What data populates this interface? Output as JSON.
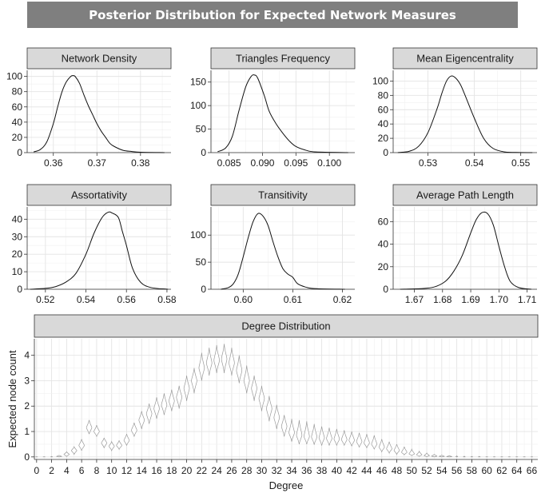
{
  "title": "Posterior Distribution for Expected Network Measures",
  "chart_data": [
    {
      "type": "line",
      "title": "Network  Density",
      "xlim": [
        0.354,
        0.387
      ],
      "ylim": [
        0,
        108
      ],
      "xticks": [
        0.36,
        0.37,
        0.38
      ],
      "xtick_labels": [
        "0.36",
        "0.37",
        "0.38"
      ],
      "yticks": [
        0,
        20,
        40,
        60,
        80,
        100
      ],
      "ytick_labels": [
        "0",
        "20",
        "40",
        "60",
        "80",
        "100"
      ],
      "minor_x": [
        0.355,
        0.365,
        0.375,
        0.385
      ],
      "minor_y": [
        10,
        30,
        50,
        70,
        90
      ],
      "x": [
        0.3555,
        0.357,
        0.3585,
        0.36,
        0.361,
        0.362,
        0.363,
        0.364,
        0.3645,
        0.365,
        0.366,
        0.367,
        0.368,
        0.369,
        0.37,
        0.371,
        0.372,
        0.373,
        0.374,
        0.376,
        0.378,
        0.38,
        0.3855
      ],
      "y": [
        1,
        4,
        14,
        38,
        60,
        80,
        93,
        100,
        101,
        100,
        91,
        76,
        62,
        50,
        38,
        28,
        20,
        12,
        8,
        3,
        1.5,
        0.5,
        0
      ]
    },
    {
      "type": "line",
      "title": "Triangles Frequency",
      "xlim": [
        0.0823,
        0.1038
      ],
      "ylim": [
        0,
        175
      ],
      "xticks": [
        0.085,
        0.09,
        0.095,
        0.1
      ],
      "xtick_labels": [
        "0.085",
        "0.090",
        "0.095",
        "0.100"
      ],
      "yticks": [
        0,
        50,
        100,
        150
      ],
      "ytick_labels": [
        "0",
        "50",
        "100",
        "150"
      ],
      "minor_x": [
        0.0825,
        0.0875,
        0.0925,
        0.0975,
        0.1025
      ],
      "minor_y": [
        25,
        75,
        125
      ],
      "x": [
        0.0833,
        0.0845,
        0.0855,
        0.0865,
        0.0875,
        0.0883,
        0.0888,
        0.0893,
        0.0903,
        0.091,
        0.092,
        0.093,
        0.094,
        0.095,
        0.0965,
        0.098,
        0.1028
      ],
      "y": [
        2,
        10,
        35,
        90,
        140,
        162,
        165,
        158,
        120,
        88,
        62,
        42,
        25,
        13,
        5,
        1.5,
        0
      ]
    },
    {
      "type": "line",
      "title": "Mean Eigencentrality",
      "xlim": [
        0.5225,
        0.5535
      ],
      "ylim": [
        0,
        115
      ],
      "xticks": [
        0.53,
        0.54,
        0.55
      ],
      "xtick_labels": [
        "0.53",
        "0.54",
        "0.55"
      ],
      "yticks": [
        0,
        20,
        40,
        60,
        80,
        100
      ],
      "ytick_labels": [
        "0",
        "20",
        "40",
        "60",
        "80",
        "100"
      ],
      "minor_x": [
        0.525,
        0.535,
        0.545
      ],
      "minor_y": [
        10,
        30,
        50,
        70,
        90
      ],
      "x": [
        0.5235,
        0.526,
        0.528,
        0.53,
        0.532,
        0.533,
        0.534,
        0.535,
        0.536,
        0.537,
        0.538,
        0.54,
        0.542,
        0.544,
        0.5465,
        0.549,
        0.5525
      ],
      "y": [
        0,
        2,
        9,
        28,
        62,
        83,
        100,
        107,
        104,
        95,
        80,
        48,
        20,
        6,
        1,
        0.3,
        0
      ]
    },
    {
      "type": "line",
      "title": "Assortativity",
      "xlim": [
        0.511,
        0.582
      ],
      "ylim": [
        0,
        47
      ],
      "xticks": [
        0.52,
        0.54,
        0.56,
        0.58
      ],
      "xtick_labels": [
        "0.52",
        "0.54",
        "0.56",
        "0.58"
      ],
      "yticks": [
        0,
        10,
        20,
        30,
        40
      ],
      "ytick_labels": [
        "0",
        "10",
        "20",
        "30",
        "40"
      ],
      "minor_x": [
        0.51,
        0.53,
        0.55,
        0.57
      ],
      "minor_y": [
        5,
        15,
        25,
        35,
        45
      ],
      "x": [
        0.5125,
        0.52,
        0.525,
        0.53,
        0.535,
        0.54,
        0.544,
        0.548,
        0.551,
        0.553,
        0.556,
        0.558,
        0.56,
        0.563,
        0.567,
        0.572,
        0.5805
      ],
      "y": [
        0,
        0.5,
        1.5,
        4,
        9,
        20,
        32,
        41,
        44,
        43.5,
        41,
        33,
        25,
        12,
        4,
        1,
        0
      ]
    },
    {
      "type": "line",
      "title": "Transitivity",
      "xlim": [
        0.5935,
        0.6225
      ],
      "ylim": [
        0,
        152
      ],
      "xticks": [
        0.6,
        0.61,
        0.62
      ],
      "xtick_labels": [
        "0.60",
        "0.61",
        "0.62"
      ],
      "yticks": [
        0,
        50,
        100
      ],
      "ytick_labels": [
        "0",
        "50",
        "100"
      ],
      "minor_x": [
        0.595,
        0.605,
        0.615
      ],
      "minor_y": [
        25,
        75,
        125
      ],
      "x": [
        0.5955,
        0.597,
        0.598,
        0.599,
        0.6,
        0.601,
        0.602,
        0.603,
        0.604,
        0.605,
        0.606,
        0.607,
        0.608,
        0.609,
        0.61,
        0.611,
        0.613,
        0.615,
        0.6205
      ],
      "y": [
        0,
        3,
        10,
        28,
        60,
        95,
        125,
        140,
        135,
        118,
        88,
        60,
        38,
        28,
        22,
        10,
        3,
        1,
        0
      ]
    },
    {
      "type": "line",
      "title": "Average Path Length",
      "xlim": [
        1.6625,
        1.7135
      ],
      "ylim": [
        0,
        73
      ],
      "xticks": [
        1.67,
        1.68,
        1.69,
        1.7,
        1.71
      ],
      "xtick_labels": [
        "1.67",
        "1.68",
        "1.69",
        "1.70",
        "1.71"
      ],
      "yticks": [
        0,
        20,
        40,
        60
      ],
      "ytick_labels": [
        "0",
        "20",
        "40",
        "60"
      ],
      "minor_x": [
        1.665,
        1.675,
        1.685,
        1.695,
        1.705
      ],
      "minor_y": [
        10,
        30,
        50,
        70
      ],
      "x": [
        1.665,
        1.672,
        1.677,
        1.681,
        1.684,
        1.687,
        1.69,
        1.692,
        1.694,
        1.696,
        1.698,
        1.7,
        1.702,
        1.704,
        1.707,
        1.7115
      ],
      "y": [
        0,
        0.5,
        2,
        7,
        16,
        30,
        50,
        62,
        68,
        67,
        57,
        38,
        20,
        7,
        1.5,
        0
      ]
    },
    {
      "type": "violin",
      "title": "Degree Distribution",
      "xlabel": "Degree",
      "ylabel": "Expected node count",
      "xlim": [
        -0.3,
        66.8
      ],
      "ylim": [
        -0.1,
        4.65
      ],
      "xticks": [
        0,
        2,
        4,
        6,
        8,
        10,
        12,
        14,
        16,
        18,
        20,
        22,
        24,
        26,
        28,
        30,
        32,
        34,
        36,
        38,
        40,
        42,
        44,
        46,
        48,
        50,
        52,
        54,
        56,
        58,
        60,
        62,
        64,
        66
      ],
      "xtick_labels": [
        "0",
        "2",
        "4",
        "6",
        "8",
        "10",
        "12",
        "14",
        "16",
        "18",
        "20",
        "22",
        "24",
        "26",
        "28",
        "30",
        "32",
        "34",
        "36",
        "38",
        "40",
        "42",
        "44",
        "46",
        "48",
        "50",
        "52",
        "54",
        "56",
        "58",
        "60",
        "62",
        "64",
        "66"
      ],
      "yticks": [
        0,
        1,
        2,
        3,
        4
      ],
      "ytick_labels": [
        "0",
        "1",
        "2",
        "3",
        "4"
      ],
      "minor_y": [
        0.5,
        1.5,
        2.5,
        3.5
      ],
      "degree": [
        0,
        1,
        2,
        3,
        4,
        5,
        6,
        7,
        8,
        9,
        10,
        11,
        12,
        13,
        14,
        15,
        16,
        17,
        18,
        19,
        20,
        21,
        22,
        23,
        24,
        25,
        26,
        27,
        28,
        29,
        30,
        31,
        32,
        33,
        34,
        35,
        36,
        37,
        38,
        39,
        40,
        41,
        42,
        43,
        44,
        45,
        46,
        47,
        48,
        49,
        50,
        51,
        52,
        53,
        54,
        55,
        56,
        57,
        58,
        59,
        60,
        61,
        62,
        63,
        64,
        65,
        66
      ],
      "center": [
        0,
        0,
        0,
        0.02,
        0.1,
        0.25,
        0.45,
        1.15,
        1.0,
        0.55,
        0.42,
        0.45,
        0.65,
        1.05,
        1.45,
        1.7,
        1.9,
        2.05,
        2.2,
        2.35,
        2.7,
        3.0,
        3.5,
        3.7,
        3.8,
        3.85,
        3.7,
        3.4,
        3.0,
        2.7,
        2.3,
        1.9,
        1.55,
        1.2,
        0.95,
        0.85,
        0.8,
        0.78,
        0.75,
        0.72,
        0.7,
        0.68,
        0.65,
        0.6,
        0.55,
        0.5,
        0.38,
        0.32,
        0.25,
        0.18,
        0.12,
        0.08,
        0.05,
        0.03,
        0.02,
        0.01,
        0.01,
        0,
        0,
        0,
        0,
        0,
        0,
        0,
        0,
        0,
        0
      ],
      "low": [
        0,
        0,
        0,
        0,
        0.02,
        0.1,
        0.25,
        0.9,
        0.8,
        0.35,
        0.25,
        0.3,
        0.45,
        0.8,
        1.1,
        1.3,
        1.5,
        1.65,
        1.8,
        1.9,
        2.2,
        2.5,
        3.0,
        3.2,
        3.3,
        3.3,
        3.2,
        2.9,
        2.5,
        2.2,
        1.8,
        1.4,
        1.1,
        0.8,
        0.6,
        0.5,
        0.5,
        0.48,
        0.45,
        0.45,
        0.45,
        0.45,
        0.42,
        0.38,
        0.35,
        0.3,
        0.2,
        0.15,
        0.1,
        0.08,
        0.05,
        0.02,
        0.01,
        0,
        0,
        0,
        0,
        0,
        0,
        0,
        0,
        0,
        0,
        0,
        0,
        0,
        0
      ],
      "high": [
        0.01,
        0.01,
        0.02,
        0.06,
        0.2,
        0.4,
        0.7,
        1.45,
        1.25,
        0.75,
        0.6,
        0.65,
        0.9,
        1.35,
        1.8,
        2.1,
        2.35,
        2.5,
        2.65,
        2.8,
        3.2,
        3.5,
        4.1,
        4.3,
        4.4,
        4.45,
        4.3,
        4.0,
        3.6,
        3.2,
        2.8,
        2.4,
        2.05,
        1.65,
        1.5,
        1.45,
        1.4,
        1.3,
        1.2,
        1.15,
        1.1,
        1.05,
        1.0,
        0.95,
        0.9,
        0.85,
        0.7,
        0.6,
        0.5,
        0.4,
        0.3,
        0.22,
        0.15,
        0.1,
        0.07,
        0.05,
        0.04,
        0.03,
        0.02,
        0.02,
        0.01,
        0.01,
        0.01,
        0.01,
        0.01,
        0.01,
        0.01
      ]
    }
  ]
}
